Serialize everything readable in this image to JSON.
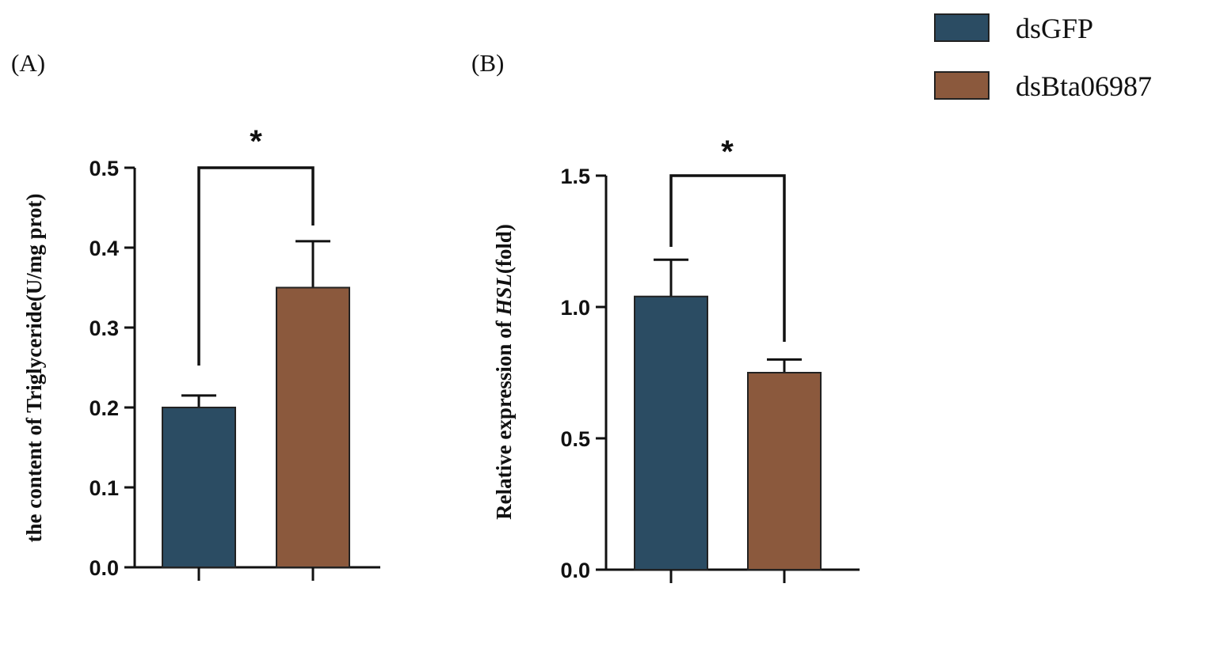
{
  "legend": [
    {
      "label": "dsGFP",
      "color": "#2b4c63"
    },
    {
      "label": "dsBta06987",
      "color": "#8b593d"
    }
  ],
  "chart_data": [
    {
      "type": "bar",
      "panel_label": "(A)",
      "ylabel": "the content of Triglyceride(U/mg prot)",
      "ylim": [
        0,
        0.5
      ],
      "yticks": [
        "0.0",
        "0.1",
        "0.2",
        "0.3",
        "0.4",
        "0.5"
      ],
      "categories": [
        "dsGFP",
        "dsBta06987"
      ],
      "values": [
        0.2,
        0.35
      ],
      "errors": [
        0.015,
        0.058
      ],
      "significance": "*"
    },
    {
      "type": "bar",
      "panel_label": "(B)",
      "ylabel_parts": [
        "Relative expression of ",
        "HSL",
        "(fold)"
      ],
      "ylim": [
        0,
        1.5
      ],
      "yticks": [
        "0.0",
        "0.5",
        "1.0",
        "1.5"
      ],
      "categories": [
        "dsGFP",
        "dsBta06987"
      ],
      "values": [
        1.04,
        0.75
      ],
      "errors": [
        0.14,
        0.05
      ],
      "significance": "*"
    }
  ]
}
